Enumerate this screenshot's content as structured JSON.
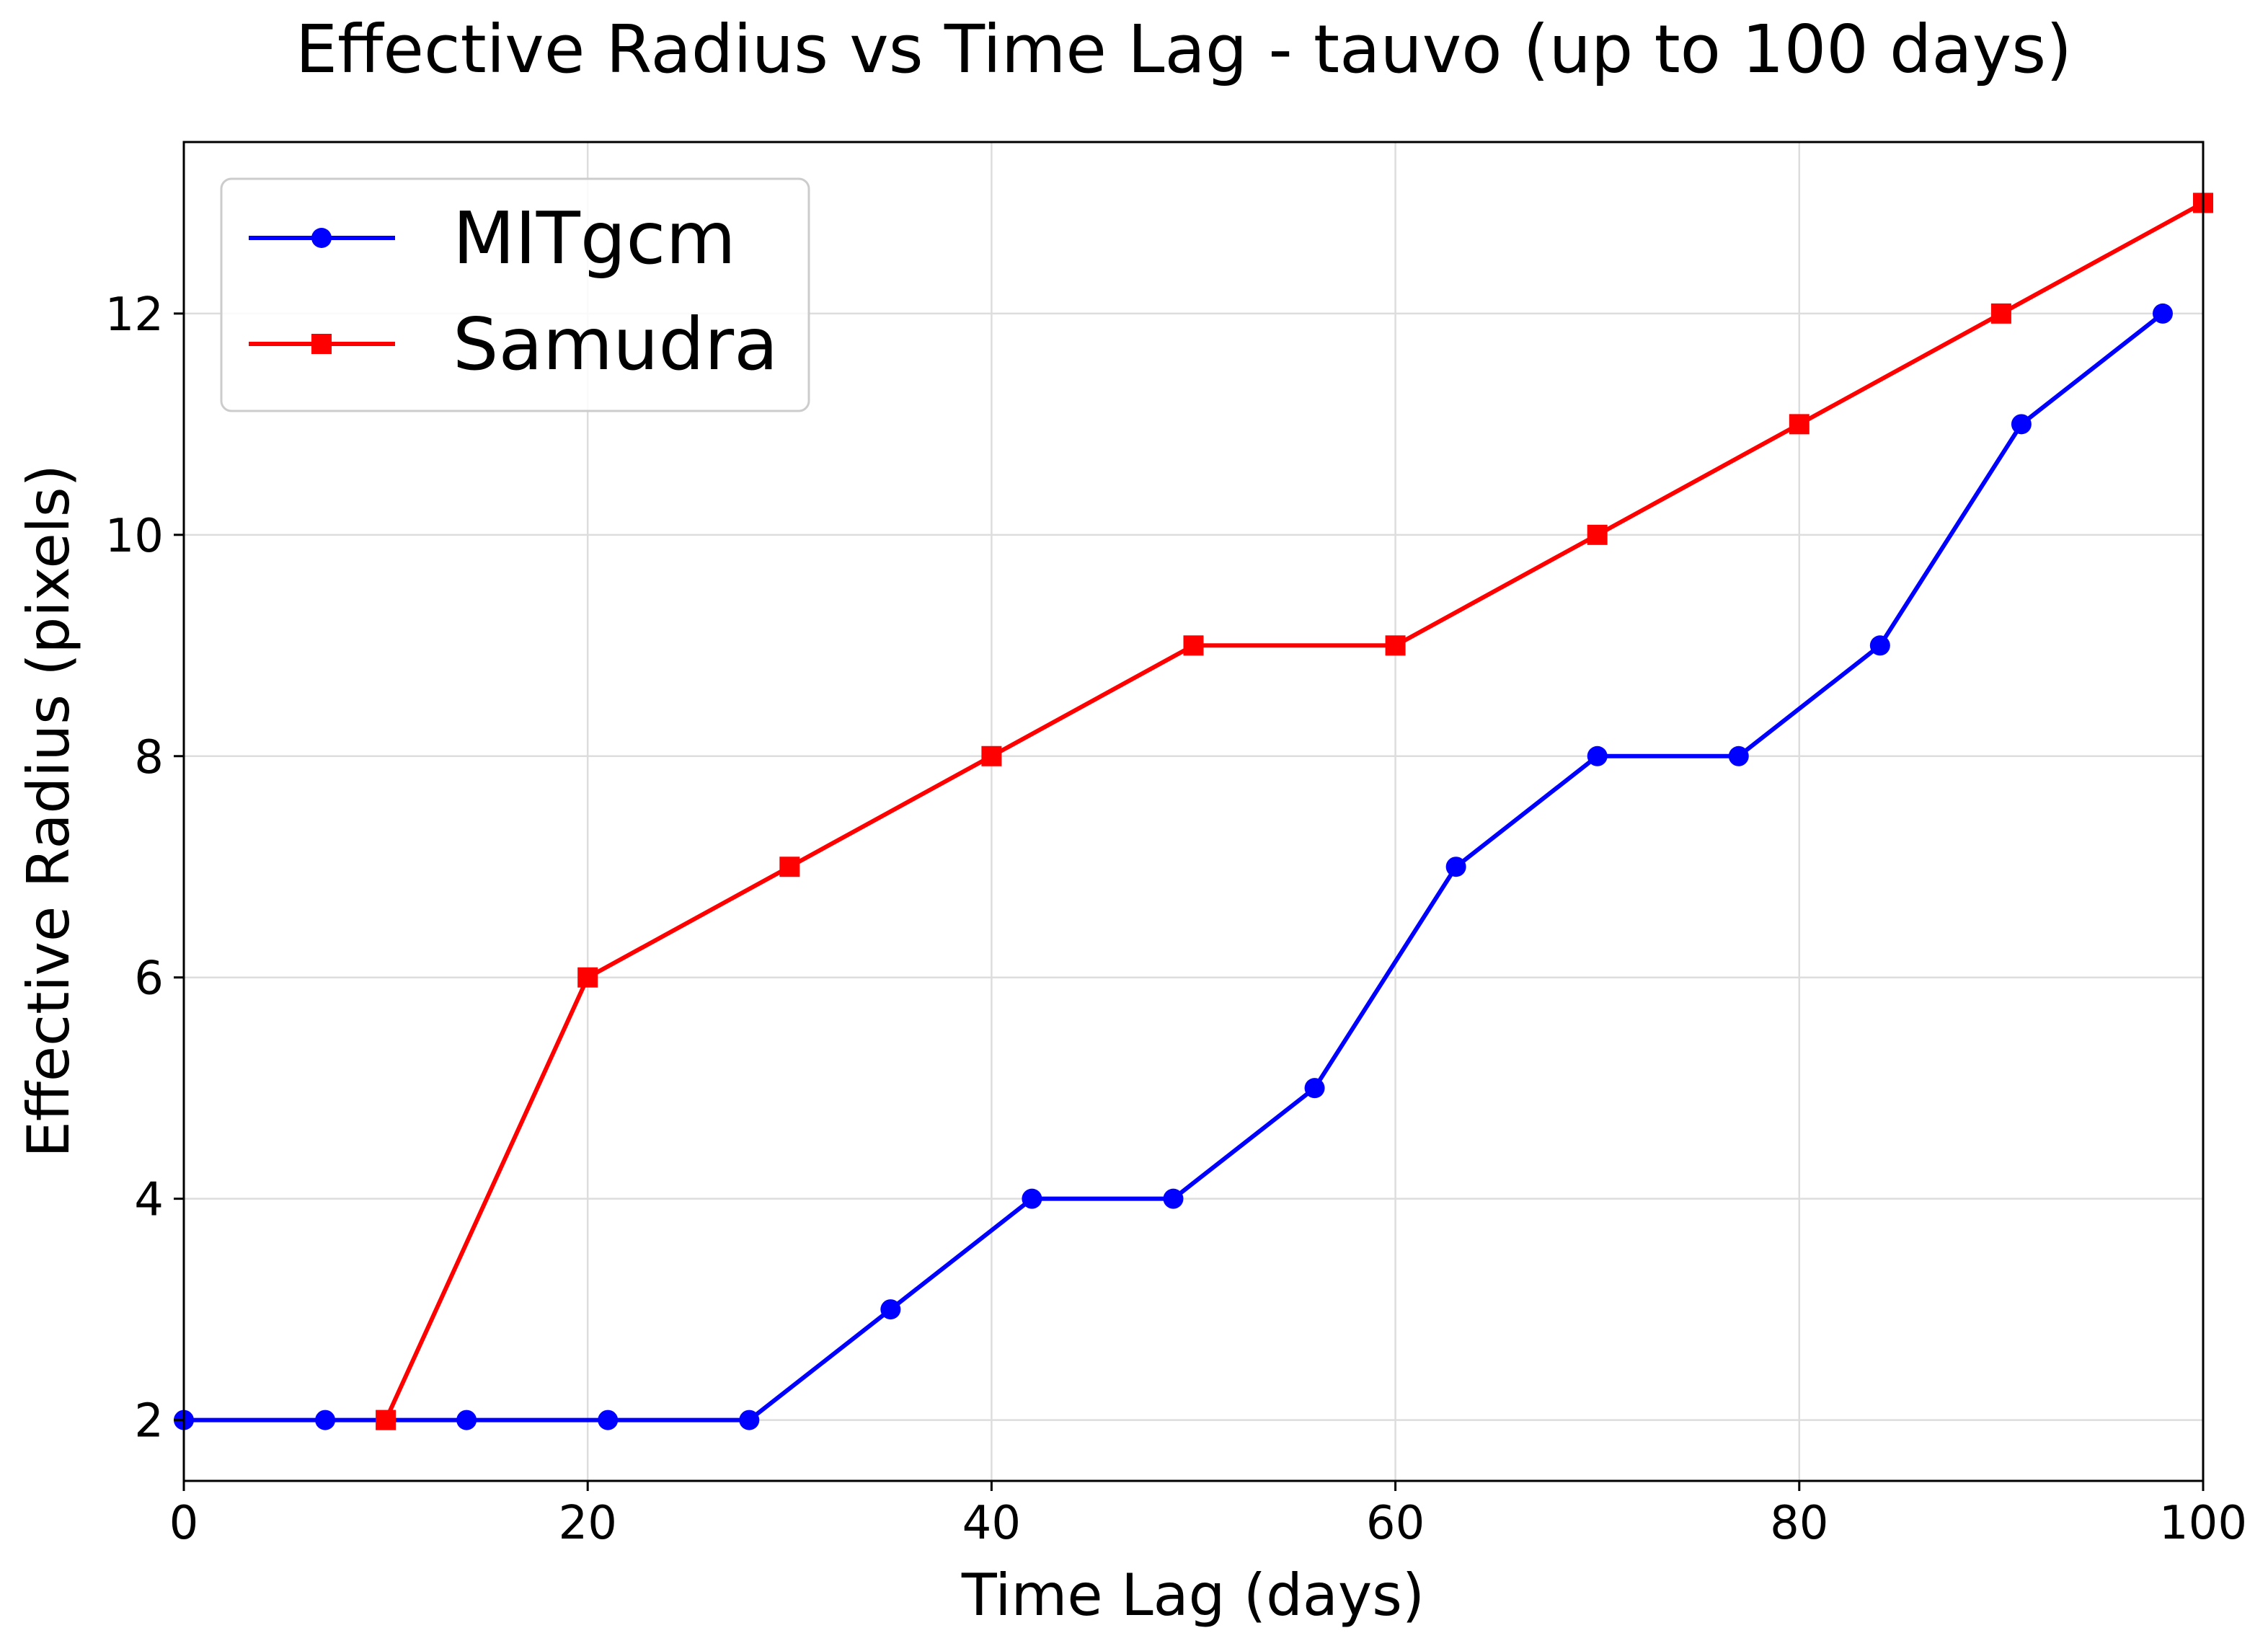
{
  "chart_data": {
    "type": "line",
    "title": "Effective Radius vs Time Lag - tauvo (up to 100 days)",
    "xlabel": "Time Lag (days)",
    "ylabel": "Effective Radius (pixels)",
    "xlim": [
      0,
      100
    ],
    "ylim": [
      1.45,
      13.55
    ],
    "xticks": [
      0,
      20,
      40,
      60,
      80,
      100
    ],
    "yticks": [
      2,
      4,
      6,
      8,
      10,
      12
    ],
    "grid": true,
    "legend_position": "upper-left",
    "series": [
      {
        "name": "MITgcm",
        "color": "#0000ff",
        "marker": "circle",
        "x": [
          0,
          7,
          14,
          21,
          28,
          35,
          42,
          49,
          56,
          63,
          70,
          77,
          84,
          91,
          98
        ],
        "y": [
          2,
          2,
          2,
          2,
          2,
          3,
          4,
          4,
          5,
          7,
          8,
          8,
          9,
          11,
          12
        ]
      },
      {
        "name": "Samudra",
        "color": "#ff0000",
        "marker": "square",
        "x": [
          10,
          20,
          30,
          40,
          50,
          60,
          70,
          80,
          90,
          100
        ],
        "y": [
          2,
          6,
          7,
          8,
          9,
          9,
          10,
          11,
          12,
          13
        ]
      }
    ]
  }
}
